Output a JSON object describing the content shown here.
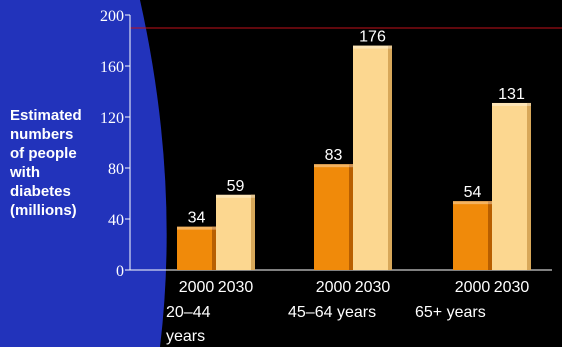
{
  "chart_data": {
    "type": "bar",
    "ylabel": "Estimated\nnumbers\nof people\nwith\ndiabetes\n(millions)",
    "ylim": [
      0,
      200
    ],
    "yticks": [
      "0",
      "40",
      "80",
      "120",
      "160",
      "200"
    ],
    "categories": [
      {
        "label": "20–44\nyears",
        "years": [
          "2000",
          "2030"
        ]
      },
      {
        "label": "45–64 years",
        "years": [
          "2000",
          "2030"
        ]
      },
      {
        "label": "65+ years",
        "years": [
          "2000",
          "2030"
        ]
      }
    ],
    "series": [
      {
        "values": [
          34,
          83,
          54
        ]
      },
      {
        "values": [
          59,
          176,
          131
        ]
      }
    ],
    "grid": false,
    "legend": "none"
  },
  "colors": {
    "background": "#000000",
    "panel": "#2233bb",
    "series_2000": "#f08a0a",
    "series_2030": "#fcd790",
    "reference_line": "#c0101a"
  }
}
